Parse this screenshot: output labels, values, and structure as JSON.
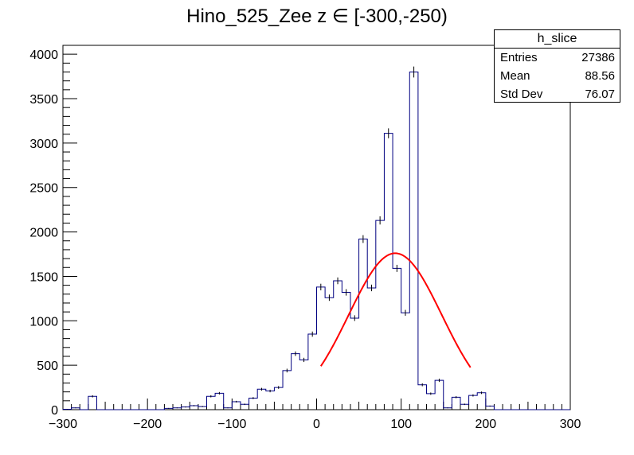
{
  "title_prefix": "Hino_525_Zee z ",
  "title_symbol": "∈",
  "title_range": "[-300,-250)",
  "stats": {
    "name": "h_slice",
    "rows": [
      {
        "label": "Entries",
        "value": "27386"
      },
      {
        "label": "Mean",
        "value": "88.56"
      },
      {
        "label": "Std Dev",
        "value": "76.07"
      }
    ]
  },
  "colors": {
    "histogram": "#000080",
    "fit": "#ff0000",
    "axis": "#000000"
  },
  "chart_data": {
    "type": "histogram",
    "xlim": [
      -300,
      300
    ],
    "ylim": [
      0,
      4100
    ],
    "xticks": [
      -300,
      -200,
      -100,
      0,
      100,
      200,
      300
    ],
    "xtick_labels": [
      "−300",
      "−200",
      "−100",
      "0",
      "100",
      "200",
      "300"
    ],
    "yticks": [
      0,
      500,
      1000,
      1500,
      2000,
      2500,
      3000,
      3500,
      4000
    ],
    "ytick_labels": [
      "0",
      "500",
      "1000",
      "1500",
      "2000",
      "2500",
      "3000",
      "3500",
      "4000"
    ],
    "bin_width": 10,
    "bin_edges_start": -300,
    "values": [
      5,
      20,
      0,
      150,
      0,
      0,
      0,
      0,
      0,
      0,
      0,
      0,
      15,
      20,
      30,
      45,
      35,
      150,
      185,
      20,
      90,
      60,
      130,
      230,
      210,
      250,
      440,
      630,
      560,
      850,
      1380,
      1260,
      1450,
      1320,
      1030,
      1920,
      1370,
      2130,
      3110,
      1590,
      1090,
      3800,
      280,
      180,
      330,
      20,
      140,
      60,
      160,
      190,
      40,
      0,
      0,
      0,
      0,
      0,
      0,
      0,
      0,
      0
    ],
    "fit": {
      "type": "gaussian",
      "amplitude": 1760,
      "mean": 93,
      "sigma": 55,
      "x_range": [
        5,
        182
      ]
    },
    "xlabel": "",
    "ylabel": ""
  }
}
